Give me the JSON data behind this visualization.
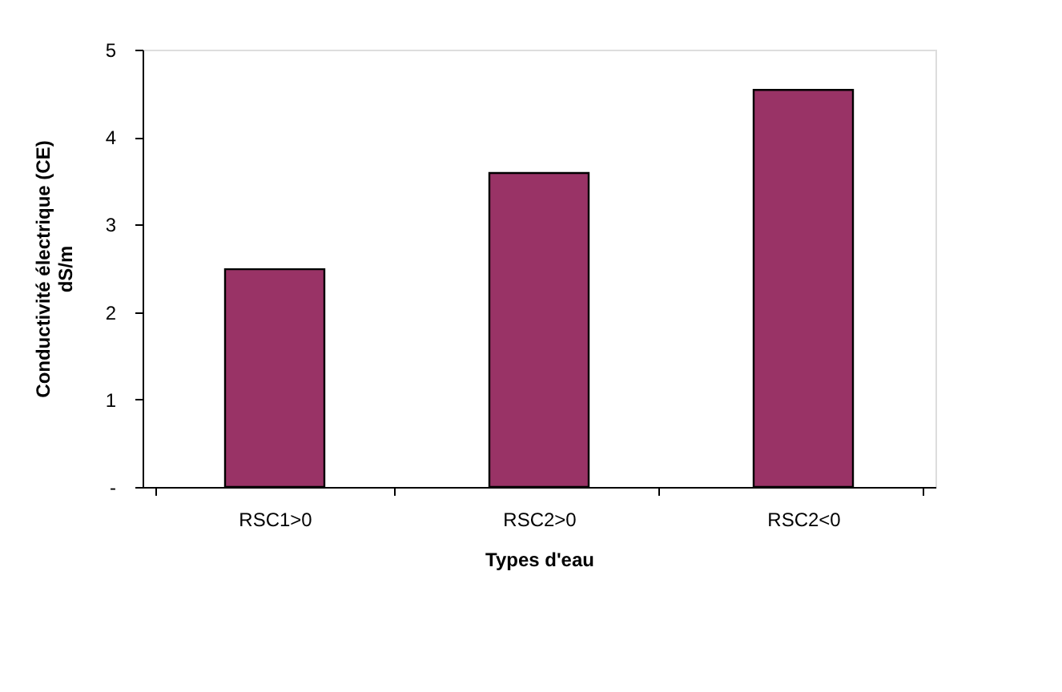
{
  "chart_data": {
    "type": "bar",
    "xlabel": "Types d'eau",
    "ylabel": "Conductivité électrique (CE) dS/m",
    "categories": [
      "RSC1>0",
      "RSC2>0",
      "RSC2<0"
    ],
    "values": [
      2.49,
      3.59,
      4.54
    ],
    "color": "#993366",
    "ylim": [
      0,
      5
    ],
    "yticks": [
      {
        "value": 0,
        "label": "-"
      },
      1,
      2,
      3,
      4,
      5
    ],
    "grid": false
  }
}
